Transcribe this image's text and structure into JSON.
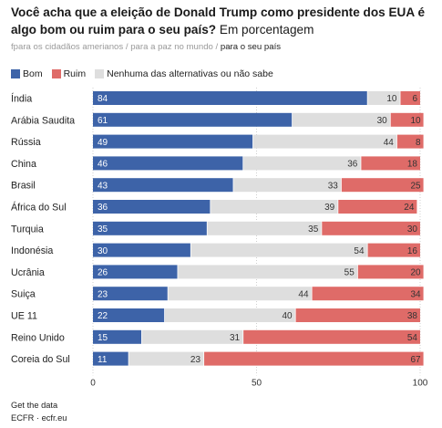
{
  "title_bold": "Você acha que a eleição de Donald Trump como presidente dos EUA é algo bom ou ruim para o seu país?",
  "title_sub": "Em porcentagem",
  "tabs": [
    {
      "label": "fpara os cidadãos amerianos",
      "active": false
    },
    {
      "label": "para a paz no mundo",
      "active": false
    },
    {
      "label": "para o seu país",
      "active": true
    }
  ],
  "tab_separator": " / ",
  "colors": {
    "bom": "#3d63a8",
    "ruim": "#df6b68",
    "nenhuma": "#dedede"
  },
  "footer": {
    "line1": "Get the data",
    "line2": "ECFR · ecfr.eu"
  },
  "chart_data": {
    "type": "bar",
    "orientation": "horizontal",
    "stacked": true,
    "categories": [
      "Índia",
      "Arábia Saudita",
      "Rússia",
      "China",
      "Brasil",
      "África do Sul",
      "Turquia",
      "Indonésia",
      "Ucrânia",
      "Suiça",
      "UE 11",
      "Reino Unido",
      "Coreia do Sul"
    ],
    "series": [
      {
        "name": "Bom",
        "color": "#3d63a8",
        "values": [
          84,
          61,
          49,
          46,
          43,
          36,
          35,
          30,
          26,
          23,
          22,
          15,
          11
        ]
      },
      {
        "name": "Nenhuma das alternativas ou não sabe",
        "color": "#dedede",
        "values": [
          10,
          30,
          44,
          36,
          33,
          39,
          35,
          54,
          55,
          44,
          40,
          31,
          23
        ]
      },
      {
        "name": "Ruim",
        "color": "#df6b68",
        "values": [
          6,
          10,
          8,
          18,
          25,
          24,
          30,
          16,
          20,
          34,
          38,
          54,
          67
        ]
      }
    ],
    "legend_order": [
      "Bom",
      "Ruim",
      "Nenhuma das alternativas ou não sabe"
    ],
    "legend_position": "top-left",
    "xlim": [
      0,
      100
    ],
    "xticks": [
      0,
      50,
      100
    ],
    "grid": true
  }
}
